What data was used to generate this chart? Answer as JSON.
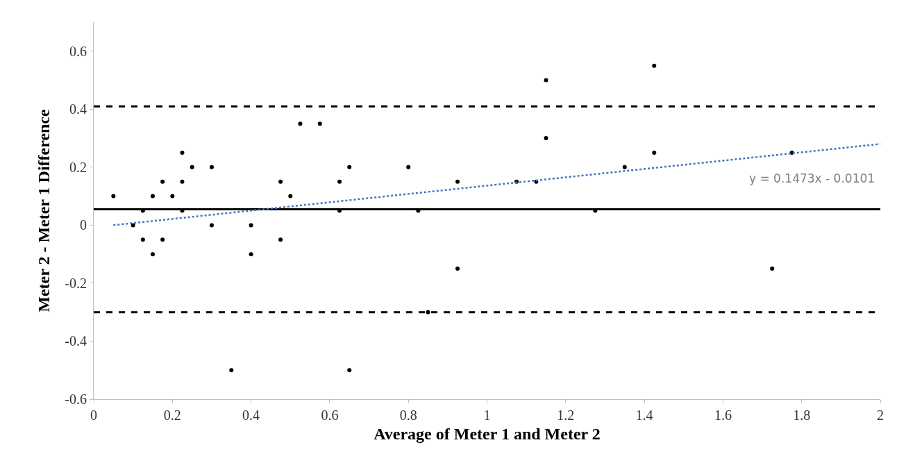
{
  "chart_data": {
    "type": "scatter",
    "xlabel": "Average of Meter 1 and Meter 2",
    "ylabel": "Meter 2 - Meter 1 Difference",
    "xlim": [
      0,
      2
    ],
    "ylim": [
      -0.6,
      0.7
    ],
    "xticks": [
      0,
      0.2,
      0.4,
      0.6,
      0.8,
      1,
      1.2,
      1.4,
      1.6,
      1.8,
      2
    ],
    "yticks": [
      -0.6,
      -0.4,
      -0.2,
      0,
      0.2,
      0.4,
      0.6
    ],
    "grid": false,
    "marker": "circle",
    "series": [
      {
        "color": "#000000",
        "x": [
          0.05,
          0.1,
          0.125,
          0.125,
          0.15,
          0.15,
          0.175,
          0.175,
          0.2,
          0.225,
          0.225,
          0.225,
          0.25,
          0.3,
          0.3,
          0.35,
          0.4,
          0.4,
          0.475,
          0.475,
          0.5,
          0.525,
          0.575,
          0.625,
          0.625,
          0.65,
          0.65,
          0.8,
          0.825,
          0.85,
          0.925,
          0.925,
          1.075,
          1.125,
          1.15,
          1.15,
          1.275,
          1.35,
          1.425,
          1.425,
          1.725,
          1.775
        ],
        "values": [
          0.1,
          0,
          0.05,
          -0.05,
          0.1,
          -0.1,
          0.15,
          -0.05,
          0.1,
          0.25,
          0.15,
          0.05,
          0.2,
          0.2,
          0,
          -0.5,
          0,
          -0.1,
          0.15,
          -0.05,
          0.1,
          0.35,
          0.35,
          0.15,
          0.05,
          0.2,
          -0.5,
          0.2,
          0.05,
          -0.3,
          0.15,
          -0.15,
          0.15,
          0.15,
          0.5,
          0.3,
          0.05,
          0.2,
          0.55,
          0.25,
          -0.15,
          0.25
        ]
      },
      {
        "type": "line",
        "color": "#4472c4",
        "line_style": "dotted",
        "marker": "none",
        "x": [
          0.05,
          2
        ],
        "values": [
          0.0,
          0.28
        ]
      }
    ],
    "ref_lines": [
      {
        "axis": "y",
        "value": 0.055,
        "color": "#000000",
        "line_style": "solid"
      },
      {
        "axis": "y",
        "value": 0.41,
        "color": "#000000",
        "line_style": "dashed"
      },
      {
        "axis": "y",
        "value": -0.3,
        "color": "#000000",
        "line_style": "dashed"
      }
    ],
    "annotations": [
      "y = 0.1473x - 0.0101"
    ]
  }
}
